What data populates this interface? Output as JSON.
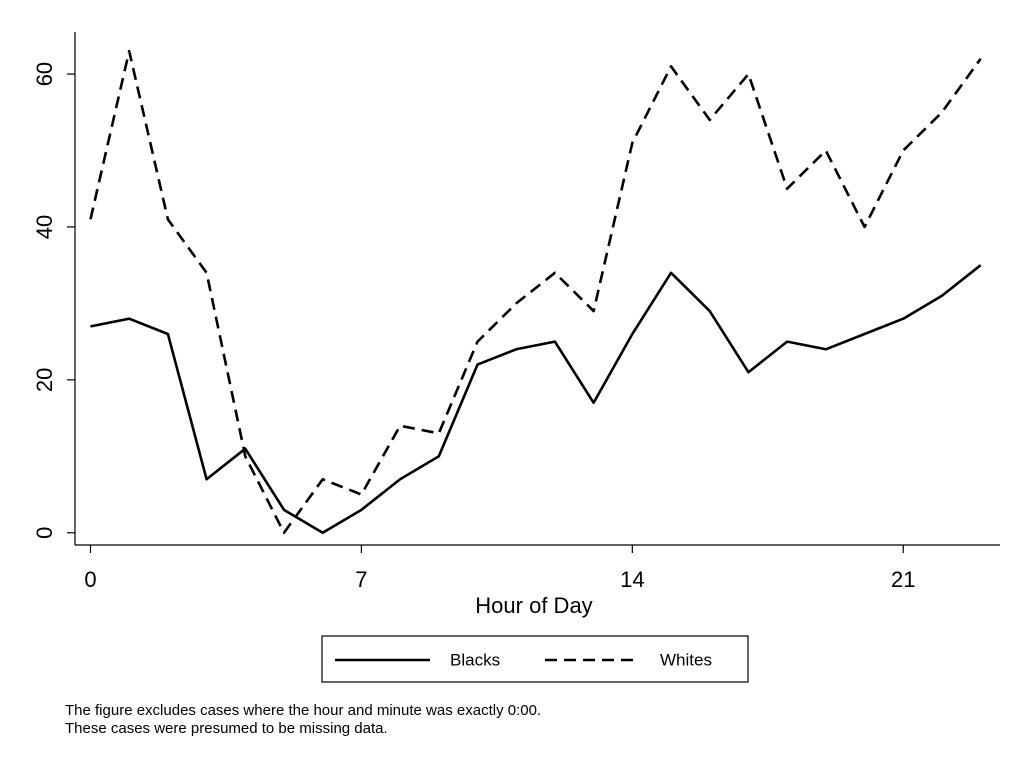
{
  "chart_data": {
    "type": "line",
    "x": [
      0,
      1,
      2,
      3,
      4,
      5,
      6,
      7,
      8,
      9,
      10,
      11,
      12,
      13,
      14,
      15,
      16,
      17,
      18,
      19,
      20,
      21,
      22,
      23
    ],
    "series": [
      {
        "name": "Blacks",
        "color": "#000000",
        "dash": "solid",
        "values": [
          27,
          28,
          26,
          7,
          11,
          3,
          0,
          3,
          7,
          10,
          22,
          24,
          25,
          17,
          26,
          34,
          29,
          21,
          25,
          24,
          26,
          28,
          31,
          35
        ]
      },
      {
        "name": "Whites",
        "color": "#000000",
        "dash": "dashed",
        "values": [
          41,
          63,
          41,
          34,
          10,
          0,
          7,
          5,
          14,
          13,
          25,
          30,
          34,
          29,
          51,
          61,
          54,
          60,
          45,
          50,
          40,
          50,
          55,
          62
        ]
      }
    ],
    "xlabel": "Hour of Day",
    "xlim": [
      -0.4,
      23.5
    ],
    "xticks": [
      0,
      7,
      14,
      21
    ],
    "ylim": [
      -1.6,
      65.5
    ],
    "yticks": [
      0,
      20,
      40,
      60
    ],
    "grid": false,
    "legend": "bottom",
    "note": [
      "The figure excludes cases where the hour and minute was exactly 0:00.",
      "These cases were presumed to be missing data."
    ]
  }
}
